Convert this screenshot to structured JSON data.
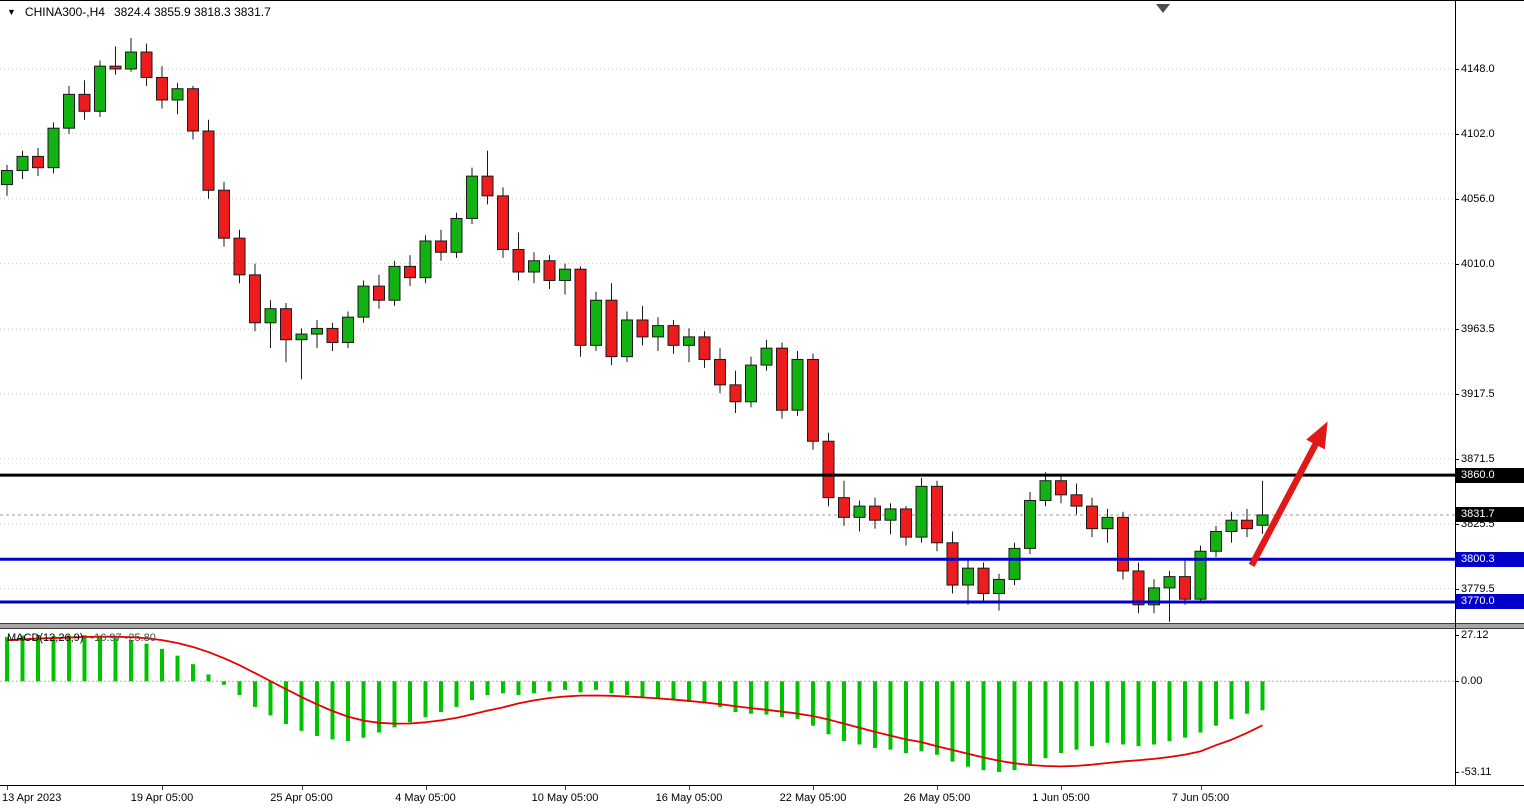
{
  "header": {
    "dropdown_icon": "▼",
    "symbol_period": "CHINA300-,H4",
    "ohlc": "3824.4 3855.9 3818.3 3831.7"
  },
  "colors": {
    "bull": "#12b212",
    "bear": "#ee1c1c",
    "candle_outline": "#1a1a1a",
    "grid": "#c6c6c6",
    "last_price_line": "#9a9a9a",
    "black_level": "#000000",
    "blue_level": "#0000c8",
    "macd_bar": "#00c300",
    "macd_signal": "#e60000",
    "arrow": "#e01818",
    "badge_black": "#000000",
    "badge_blue": "#0000c8"
  },
  "price_axis": {
    "ticks": [
      "4148.0",
      "4102.0",
      "4056.0",
      "4010.0",
      "3963.5",
      "3917.5",
      "3871.5",
      "3825.5",
      "3779.5"
    ],
    "macd_ticks": [
      "27.12",
      "0.00",
      "-53.11"
    ],
    "badges": [
      {
        "text": "3860.0",
        "value": 3860.0,
        "type": "black"
      },
      {
        "text": "3831.7",
        "value": 3831.7,
        "type": "black"
      },
      {
        "text": "3800.3",
        "value": 3800.3,
        "type": "blue"
      },
      {
        "text": "3770.0",
        "value": 3770.0,
        "type": "blue"
      }
    ]
  },
  "time_axis": {
    "labels": [
      {
        "text": "13 Apr 2023",
        "index": 0,
        "align": "left"
      },
      {
        "text": "19 Apr 05:00",
        "index": 10
      },
      {
        "text": "25 Apr 05:00",
        "index": 19
      },
      {
        "text": "4 May 05:00",
        "index": 27
      },
      {
        "text": "10 May 05:00",
        "index": 36
      },
      {
        "text": "16 May 05:00",
        "index": 44
      },
      {
        "text": "22 May 05:00",
        "index": 52
      },
      {
        "text": "26 May 05:00",
        "index": 60
      },
      {
        "text": "1 Jun 05:00",
        "index": 68
      },
      {
        "text": "7 Jun 05:00",
        "index": 77
      }
    ]
  },
  "chart_data": [
    {
      "type": "candlestick",
      "title": "CHINA300-,H4",
      "timeframe": "H4",
      "ylim": [
        3755.1,
        4196.2
      ],
      "y_ticks": [
        4148.0,
        4102.0,
        4056.0,
        4010.0,
        3963.5,
        3917.5,
        3871.5,
        3825.5,
        3779.5
      ],
      "last_price": 3831.7,
      "last_ohlc": {
        "open": 3824.4,
        "high": 3855.9,
        "low": 3818.3,
        "close": 3831.7
      },
      "hlines": [
        {
          "value": 3860.0,
          "color": "#000000",
          "width": 3,
          "label": "3860.0"
        },
        {
          "value": 3800.3,
          "color": "#0000c8",
          "width": 3,
          "label": "3800.3"
        },
        {
          "value": 3770.0,
          "color": "#0000c8",
          "width": 3,
          "label": "3770.0"
        }
      ],
      "arrow_annotation": {
        "from": {
          "index": 80.3,
          "price": 3796
        },
        "to": {
          "index": 85.2,
          "price": 3898
        },
        "color": "#e01818"
      },
      "candles": [
        [
          4066,
          4080,
          4058,
          4076
        ],
        [
          4076,
          4090,
          4070,
          4086
        ],
        [
          4086,
          4092,
          4072,
          4078
        ],
        [
          4078,
          4110,
          4074,
          4106
        ],
        [
          4106,
          4136,
          4102,
          4130
        ],
        [
          4130,
          4140,
          4112,
          4118
        ],
        [
          4118,
          4154,
          4114,
          4150
        ],
        [
          4150,
          4164,
          4144,
          4148
        ],
        [
          4148,
          4170,
          4146,
          4160
        ],
        [
          4160,
          4166,
          4136,
          4142
        ],
        [
          4142,
          4150,
          4120,
          4126
        ],
        [
          4126,
          4138,
          4116,
          4134
        ],
        [
          4134,
          4136,
          4098,
          4104
        ],
        [
          4104,
          4112,
          4056,
          4062
        ],
        [
          4062,
          4068,
          4022,
          4028
        ],
        [
          4028,
          4034,
          3996,
          4002
        ],
        [
          4002,
          4010,
          3962,
          3968
        ],
        [
          3968,
          3984,
          3950,
          3978
        ],
        [
          3978,
          3982,
          3940,
          3956
        ],
        [
          3956,
          3964,
          3928,
          3960
        ],
        [
          3960,
          3970,
          3950,
          3964
        ],
        [
          3964,
          3968,
          3948,
          3954
        ],
        [
          3954,
          3976,
          3950,
          3972
        ],
        [
          3972,
          3998,
          3968,
          3994
        ],
        [
          3994,
          4002,
          3978,
          3984
        ],
        [
          3984,
          4012,
          3980,
          4008
        ],
        [
          4008,
          4016,
          3994,
          4000
        ],
        [
          4000,
          4030,
          3996,
          4026
        ],
        [
          4026,
          4034,
          4012,
          4018
        ],
        [
          4018,
          4046,
          4014,
          4042
        ],
        [
          4042,
          4078,
          4038,
          4072
        ],
        [
          4072,
          4090,
          4052,
          4058
        ],
        [
          4058,
          4064,
          4014,
          4020
        ],
        [
          4020,
          4032,
          3998,
          4004
        ],
        [
          4004,
          4018,
          3996,
          4012
        ],
        [
          4012,
          4016,
          3992,
          3998
        ],
        [
          3998,
          4010,
          3988,
          4006
        ],
        [
          4006,
          4008,
          3944,
          3952
        ],
        [
          3952,
          3990,
          3948,
          3984
        ],
        [
          3984,
          3996,
          3938,
          3944
        ],
        [
          3944,
          3976,
          3940,
          3970
        ],
        [
          3970,
          3980,
          3952,
          3958
        ],
        [
          3958,
          3972,
          3948,
          3966
        ],
        [
          3966,
          3970,
          3946,
          3952
        ],
        [
          3952,
          3964,
          3940,
          3958
        ],
        [
          3958,
          3962,
          3936,
          3942
        ],
        [
          3942,
          3950,
          3918,
          3924
        ],
        [
          3924,
          3934,
          3904,
          3912
        ],
        [
          3912,
          3944,
          3908,
          3938
        ],
        [
          3938,
          3956,
          3934,
          3950
        ],
        [
          3950,
          3954,
          3900,
          3906
        ],
        [
          3906,
          3948,
          3902,
          3942
        ],
        [
          3942,
          3946,
          3878,
          3884
        ],
        [
          3884,
          3890,
          3838,
          3844
        ],
        [
          3844,
          3856,
          3824,
          3830
        ],
        [
          3830,
          3842,
          3820,
          3838
        ],
        [
          3838,
          3844,
          3822,
          3828
        ],
        [
          3828,
          3840,
          3818,
          3836
        ],
        [
          3836,
          3838,
          3810,
          3816
        ],
        [
          3816,
          3858,
          3812,
          3852
        ],
        [
          3852,
          3856,
          3806,
          3812
        ],
        [
          3812,
          3820,
          3776,
          3782
        ],
        [
          3782,
          3800,
          3768,
          3794
        ],
        [
          3794,
          3798,
          3770,
          3776
        ],
        [
          3776,
          3790,
          3764,
          3786
        ],
        [
          3786,
          3812,
          3782,
          3808
        ],
        [
          3808,
          3848,
          3804,
          3842
        ],
        [
          3842,
          3862,
          3838,
          3856
        ],
        [
          3856,
          3860,
          3840,
          3846
        ],
        [
          3846,
          3854,
          3832,
          3838
        ],
        [
          3838,
          3844,
          3816,
          3822
        ],
        [
          3822,
          3836,
          3812,
          3830
        ],
        [
          3830,
          3834,
          3786,
          3792
        ],
        [
          3792,
          3798,
          3762,
          3768
        ],
        [
          3768,
          3786,
          3762,
          3780
        ],
        [
          3780,
          3792,
          3756,
          3788
        ],
        [
          3788,
          3800,
          3768,
          3772
        ],
        [
          3772,
          3810,
          3770,
          3806
        ],
        [
          3806,
          3824,
          3802,
          3820
        ],
        [
          3820,
          3834,
          3812,
          3828
        ],
        [
          3828,
          3836,
          3816,
          3822
        ],
        [
          3824.4,
          3855.9,
          3818.3,
          3831.7
        ]
      ]
    },
    {
      "type": "macd",
      "label_name": "MACD(12,26,9)",
      "label_values": "-16.97 -25.80",
      "current_values": [
        -16.97,
        -25.8
      ],
      "ylim": [
        -60.7,
        30.6
      ],
      "y_ticks": [
        27.12,
        0.0,
        -53.11
      ],
      "histogram": [
        26.0,
        26.8,
        27.1,
        26.5,
        26.9,
        27.0,
        26.6,
        25.4,
        24.0,
        22.0,
        19.0,
        15.0,
        10.0,
        4.0,
        -2.0,
        -8.0,
        -15.0,
        -20.0,
        -25.0,
        -29.0,
        -32.0,
        -34.0,
        -35.0,
        -33.0,
        -30.0,
        -27.0,
        -24.0,
        -21.0,
        -18.0,
        -15.0,
        -11.0,
        -8.0,
        -7.0,
        -8.0,
        -7.0,
        -6.0,
        -5.0,
        -6.5,
        -5.0,
        -7.0,
        -8.0,
        -9.0,
        -10.0,
        -11.0,
        -12.0,
        -13.0,
        -15.0,
        -18.0,
        -19.0,
        -19.5,
        -21.0,
        -22.0,
        -26.0,
        -31.0,
        -35.0,
        -37.0,
        -39.0,
        -40.0,
        -42.0,
        -41.0,
        -43.0,
        -47.0,
        -50.0,
        -52.0,
        -53.1,
        -52.0,
        -49.0,
        -45.0,
        -42.0,
        -40.0,
        -38.0,
        -36.0,
        -37.0,
        -38.0,
        -37.0,
        -35.0,
        -33.0,
        -30.0,
        -26.0,
        -22.0,
        -19.0,
        -16.97
      ],
      "signal": [
        24.0,
        24.5,
        25.0,
        25.3,
        25.6,
        25.9,
        26.1,
        26.1,
        25.8,
        25.2,
        24.1,
        22.4,
        20.1,
        17.1,
        13.5,
        9.4,
        4.8,
        0.1,
        -4.6,
        -9.2,
        -13.5,
        -17.4,
        -20.7,
        -23.0,
        -24.3,
        -24.8,
        -24.7,
        -24.0,
        -22.9,
        -21.4,
        -19.4,
        -17.2,
        -15.3,
        -12.9,
        -11.2,
        -9.8,
        -8.9,
        -8.4,
        -8.3,
        -8.5,
        -8.9,
        -9.4,
        -10.0,
        -10.7,
        -11.5,
        -12.4,
        -13.4,
        -14.6,
        -15.7,
        -16.7,
        -17.8,
        -18.9,
        -20.4,
        -22.4,
        -24.8,
        -27.2,
        -29.6,
        -31.8,
        -34.0,
        -35.6,
        -38.0,
        -40.2,
        -42.4,
        -44.6,
        -46.5,
        -48.0,
        -49.0,
        -49.6,
        -49.8,
        -49.5,
        -48.8,
        -47.8,
        -46.9,
        -46.2,
        -45.4,
        -44.3,
        -42.9,
        -41.0,
        -37.4,
        -34.2,
        -30.2,
        -25.8
      ]
    }
  ]
}
